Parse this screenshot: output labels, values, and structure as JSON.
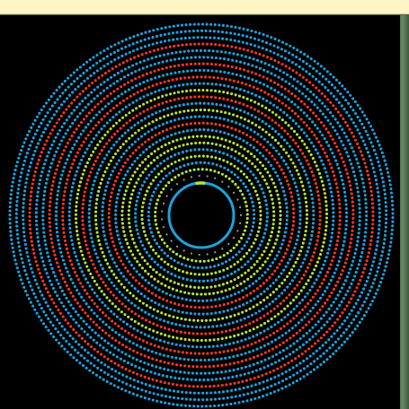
{
  "diagram": {
    "type": "concentric-dot-rings",
    "colors": {
      "blue": "#1da1dd",
      "red": "#f03a28",
      "green": "#b5e53b",
      "gray": "#9a9a9a",
      "background": "#000000"
    },
    "inner_marker": {
      "color": "#1da1dd",
      "highlight_color": "#b5e53b"
    },
    "rings": [
      {
        "color": "gray"
      },
      {
        "color": "green"
      },
      {
        "color": "blue"
      },
      {
        "color": "green"
      },
      {
        "color": "blue"
      },
      {
        "color": "green"
      },
      {
        "color": "green"
      },
      {
        "color": "blue"
      },
      {
        "color": "red"
      },
      {
        "color": "blue"
      },
      {
        "color": "green"
      },
      {
        "color": "blue"
      },
      {
        "color": "red"
      },
      {
        "color": "green"
      },
      {
        "color": "blue"
      },
      {
        "color": "red"
      },
      {
        "color": "blue"
      },
      {
        "color": "red"
      },
      {
        "color": "blue"
      },
      {
        "color": "blue"
      },
      {
        "color": "red"
      },
      {
        "color": "blue"
      },
      {
        "color": "blue"
      },
      {
        "color": "blue"
      }
    ]
  }
}
